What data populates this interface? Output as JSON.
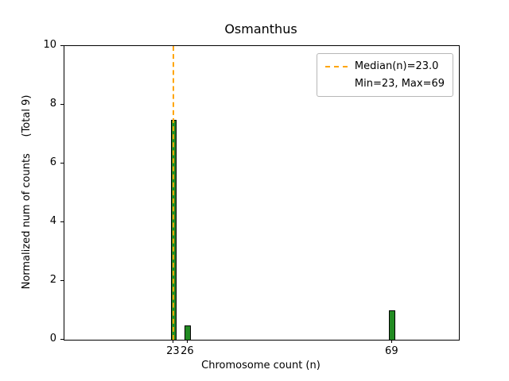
{
  "chart_data": {
    "type": "bar",
    "title": "Osmanthus",
    "xlabel": "Chromosome count (n)",
    "ylabel": "Normalized num of counts     (Total 9)",
    "x": [
      23,
      26,
      69
    ],
    "values": [
      7.5,
      0.5,
      1.0
    ],
    "total_counts": 9,
    "bar_width": 1.3,
    "bar_color": "#228B22",
    "bar_edge_color": "#000000",
    "xlim": [
      0,
      83
    ],
    "ylim": [
      0,
      10
    ],
    "yticks": [
      0,
      2,
      4,
      6,
      8,
      10
    ],
    "xticks": [
      23,
      26,
      69
    ],
    "grid": false,
    "median_line": {
      "x": 23.0,
      "color": "#FFA500",
      "style": "dashed"
    },
    "legend": {
      "position": "upper right",
      "entries": [
        "Median(n)=23.0",
        "Min=23, Max=69"
      ]
    }
  }
}
